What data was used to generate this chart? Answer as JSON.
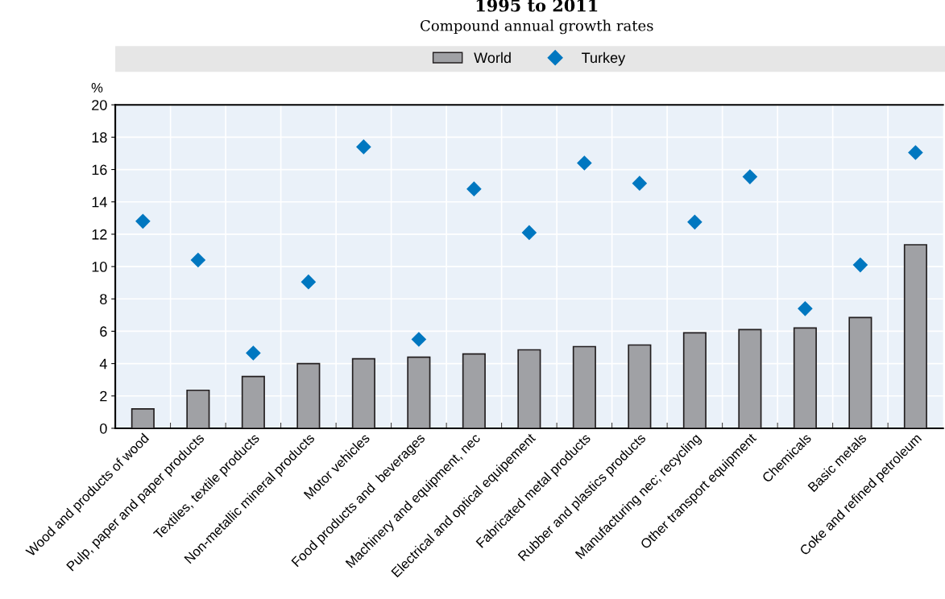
{
  "chart_data": {
    "type": "bar",
    "title": "1995 to 2011",
    "subtitle": "Compound annual growth rates",
    "ylabel": "%",
    "categories": [
      "Wood and products of wood",
      "Pulp, paper and paper products",
      "Textiles, textile products",
      "Non-metallic mineral products",
      "Motor vehicles",
      "Food products and  beverages",
      "Machinery and equipment, nec",
      "Electrical and optical equipement",
      "Fabricated metal products",
      "Rubber and plastics products",
      "Manufacturing nec; recycling",
      "Other transport equipment",
      "Chemicals",
      "Basic metals",
      "Coke and refined petroleum"
    ],
    "series": [
      {
        "name": "World",
        "color": "#a0a1a5",
        "values": [
          1.2,
          2.35,
          3.2,
          4.0,
          4.3,
          4.4,
          4.6,
          4.85,
          5.05,
          5.15,
          5.9,
          6.1,
          6.2,
          6.85,
          11.35
        ]
      },
      {
        "name": "Turkey",
        "type": "scatter",
        "color": "#0077c0",
        "values": [
          12.8,
          10.4,
          4.65,
          9.05,
          17.4,
          5.5,
          14.8,
          12.1,
          16.4,
          15.15,
          12.75,
          15.55,
          7.4,
          10.1,
          17.05
        ]
      }
    ],
    "ylim": [
      0,
      20
    ],
    "yticks": [
      0,
      2,
      4,
      6,
      8,
      10,
      12,
      14,
      16,
      18,
      20
    ],
    "grid": true,
    "legend": "top",
    "marker": "diamond"
  }
}
